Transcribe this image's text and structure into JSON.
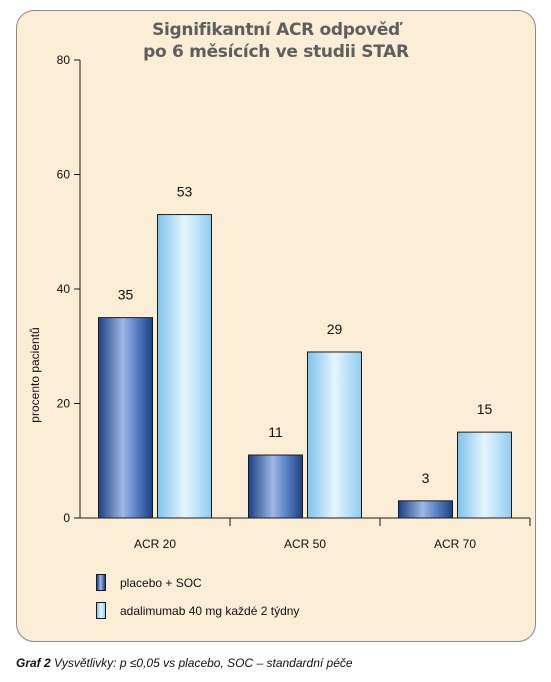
{
  "chart_data": {
    "type": "bar",
    "title_lines": [
      "Signifikantní ACR odpověď",
      "po 6 měsících ve studii STAR"
    ],
    "ylabel": "procento pacientů",
    "xlabel": "",
    "ylim": [
      0,
      80
    ],
    "yticks": [
      0,
      20,
      40,
      60,
      80
    ],
    "categories": [
      "ACR 20",
      "ACR 50",
      "ACR 70"
    ],
    "series": [
      {
        "name": "placebo + SOC",
        "values": [
          35,
          11,
          3
        ],
        "color": "#2f5fa8"
      },
      {
        "name": "adalimumab 40 mg každé 2 týdny",
        "values": [
          53,
          29,
          15
        ],
        "color": "#9fd3f2"
      }
    ],
    "data_labels": true,
    "legend_position": "bottom-left",
    "grid": false
  },
  "caption": {
    "prefix": "Graf 2",
    "text": "Vysvětlivky: p ≤0,05 vs placebo, SOC – standardní péče"
  },
  "colors": {
    "panel_background": "#fcedd6",
    "title": "#5e5e5e"
  }
}
